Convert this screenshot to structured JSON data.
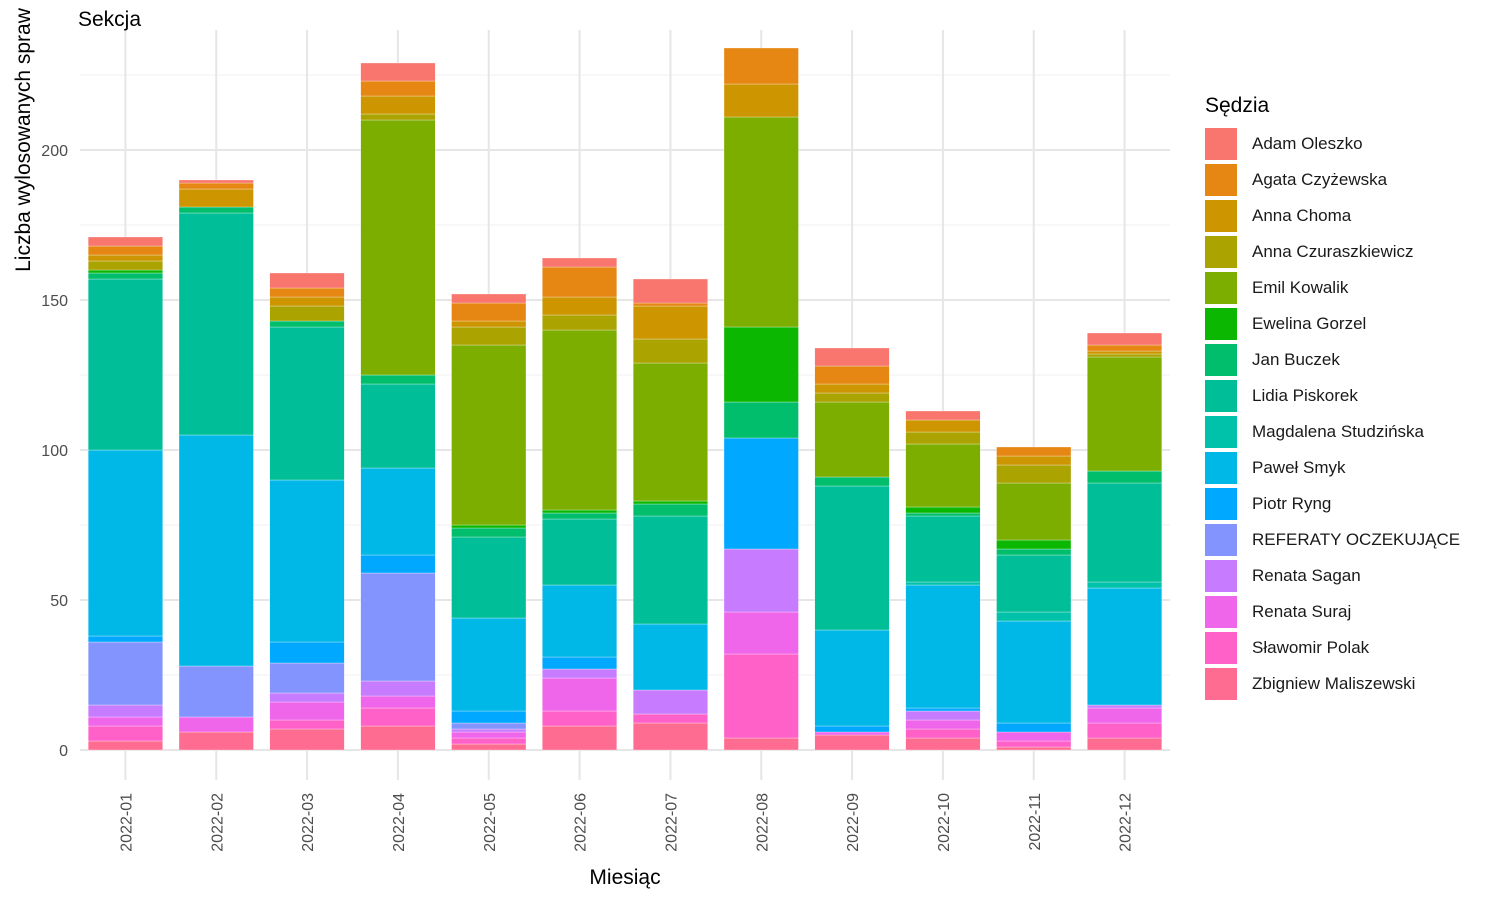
{
  "chart_data": {
    "type": "bar",
    "stacked": true,
    "subtitle": "Sekcja",
    "xlabel": "Miesiąc",
    "ylabel": "Liczba wylosowanych spraw",
    "ylim": [
      0,
      240
    ],
    "yticks": [
      0,
      50,
      100,
      150,
      200
    ],
    "grid": true,
    "legend_title": "Sędzia",
    "legend_position": "right",
    "categories": [
      "2022-01",
      "2022-02",
      "2022-03",
      "2022-04",
      "2022-05",
      "2022-06",
      "2022-07",
      "2022-08",
      "2022-09",
      "2022-10",
      "2022-11",
      "2022-12"
    ],
    "series": [
      {
        "name": "Zbigniew Maliszewski",
        "color": "#FF6C91",
        "values": [
          3,
          6,
          7,
          8,
          2,
          8,
          9,
          4,
          5,
          4,
          1,
          4
        ]
      },
      {
        "name": "Sławomir Polak",
        "color": "#FF61C9",
        "values": [
          5,
          0,
          3,
          6,
          2,
          5,
          3,
          28,
          0,
          3,
          2,
          5
        ]
      },
      {
        "name": "Renata Suraj",
        "color": "#F066EA",
        "values": [
          3,
          5,
          6,
          4,
          2,
          11,
          0,
          14,
          1,
          3,
          3,
          5
        ]
      },
      {
        "name": "Renata Sagan",
        "color": "#C77CFF",
        "values": [
          4,
          0,
          3,
          5,
          1,
          3,
          8,
          21,
          0,
          3,
          0,
          1
        ]
      },
      {
        "name": "REFERATY OCZEKUJĄCE",
        "color": "#8494FF",
        "values": [
          21,
          17,
          10,
          36,
          2,
          0,
          0,
          0,
          0,
          0,
          0,
          0
        ]
      },
      {
        "name": "Piotr Ryng",
        "color": "#00A9FF",
        "values": [
          2,
          0,
          7,
          6,
          4,
          4,
          0,
          37,
          2,
          1,
          3,
          0
        ]
      },
      {
        "name": "Paweł Smyk",
        "color": "#00B8E7",
        "values": [
          62,
          77,
          54,
          29,
          31,
          24,
          22,
          0,
          32,
          41,
          34,
          39
        ]
      },
      {
        "name": "Magdalena Studzińska",
        "color": "#00C1AA",
        "values": [
          0,
          0,
          0,
          0,
          0,
          0,
          0,
          0,
          0,
          1,
          3,
          2
        ]
      },
      {
        "name": "Lidia Piskorek",
        "color": "#00BE97",
        "values": [
          57,
          74,
          51,
          28,
          27,
          22,
          36,
          0,
          48,
          22,
          19,
          33
        ]
      },
      {
        "name": "Jan Buczek",
        "color": "#00BE6C",
        "values": [
          2,
          2,
          2,
          3,
          3,
          2,
          4,
          12,
          3,
          1,
          2,
          4
        ]
      },
      {
        "name": "Ewelina Gorzel",
        "color": "#0CB702",
        "values": [
          1,
          0,
          0,
          0,
          1,
          1,
          1,
          25,
          0,
          2,
          3,
          0
        ]
      },
      {
        "name": "Emil Kowalik",
        "color": "#7CAE00",
        "values": [
          0,
          0,
          0,
          85,
          60,
          60,
          46,
          70,
          25,
          21,
          19,
          38
        ]
      },
      {
        "name": "Anna Czuraszkiewicz",
        "color": "#ABA300",
        "values": [
          3,
          0,
          5,
          2,
          6,
          5,
          8,
          0,
          3,
          4,
          6,
          1
        ]
      },
      {
        "name": "Anna Choma",
        "color": "#CD9600",
        "values": [
          2,
          6,
          3,
          6,
          2,
          6,
          11,
          11,
          3,
          4,
          3,
          1
        ]
      },
      {
        "name": "Agata Czyżewska",
        "color": "#E68613",
        "values": [
          3,
          2,
          3,
          5,
          6,
          10,
          1,
          12,
          6,
          0,
          3,
          2
        ]
      },
      {
        "name": "Adam Oleszko",
        "color": "#F8766D",
        "values": [
          3,
          1,
          5,
          6,
          3,
          3,
          8,
          0,
          6,
          3,
          0,
          4
        ]
      }
    ]
  }
}
